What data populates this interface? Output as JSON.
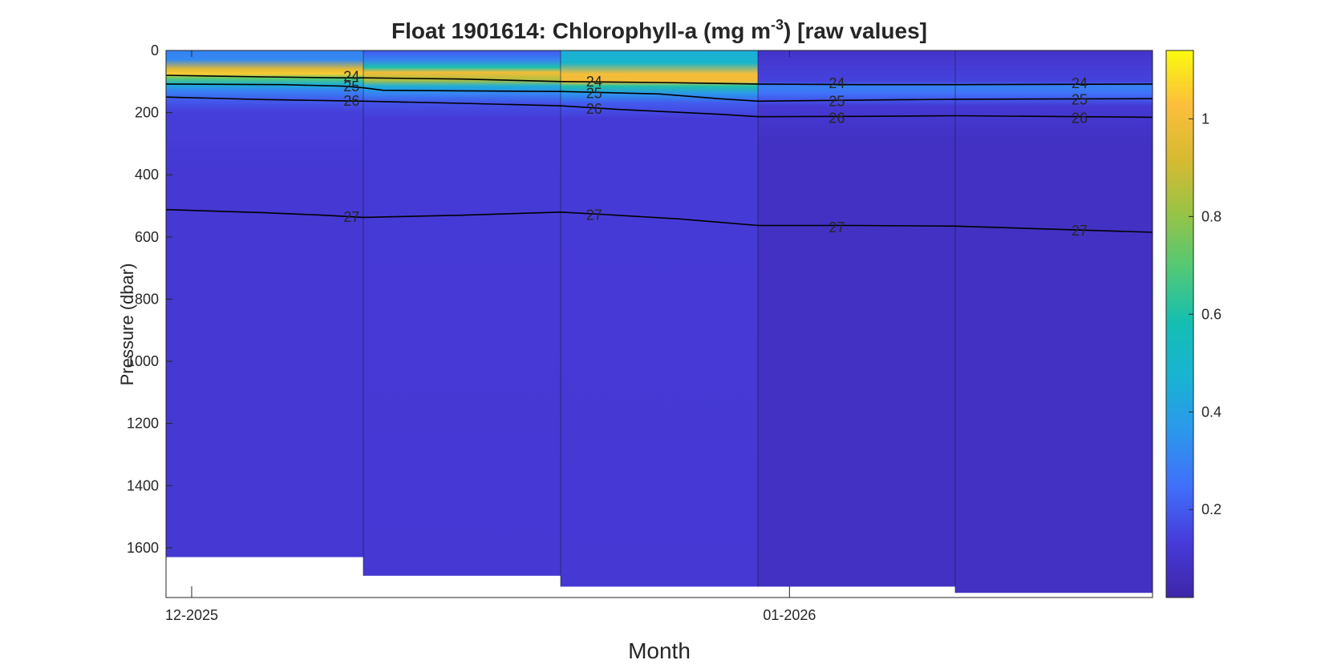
{
  "chart_data": {
    "type": "heatmap",
    "title": {
      "prefix": "Float  1901614:  Chlorophyll-a  (mg  m",
      "superscript": "-3",
      "suffix": ")  [raw  values]"
    },
    "xlabel": "Month",
    "ylabel": "Pressure (dbar)",
    "ylim": [
      0,
      1760
    ],
    "y_reversed": true,
    "y_ticks": [
      0,
      200,
      400,
      600,
      800,
      1000,
      1200,
      1400,
      1600
    ],
    "x_ticks": [
      {
        "label": "12-2025",
        "profile_pos": 0.13
      },
      {
        "label": "01-2026",
        "profile_pos": 3.16
      }
    ],
    "colorbar": {
      "range": [
        0.02,
        1.14
      ],
      "ticks": [
        0.2,
        0.4,
        0.6,
        0.8,
        1
      ],
      "colormap": "parula"
    },
    "grid": false,
    "profiles": [
      {
        "max_pressure": 1630,
        "chl_layers": [
          {
            "p": 0,
            "v": 0.3
          },
          {
            "p": 30,
            "v": 0.32
          },
          {
            "p": 60,
            "v": 0.95
          },
          {
            "p": 75,
            "v": 1.05
          },
          {
            "p": 90,
            "v": 0.7
          },
          {
            "p": 110,
            "v": 0.45
          },
          {
            "p": 130,
            "v": 0.3
          },
          {
            "p": 160,
            "v": 0.2
          },
          {
            "p": 200,
            "v": 0.14
          },
          {
            "p": 400,
            "v": 0.12
          },
          {
            "p": 1630,
            "v": 0.12
          }
        ]
      },
      {
        "max_pressure": 1690,
        "chl_layers": [
          {
            "p": 0,
            "v": 0.2
          },
          {
            "p": 30,
            "v": 0.3
          },
          {
            "p": 55,
            "v": 0.6
          },
          {
            "p": 70,
            "v": 1.0
          },
          {
            "p": 95,
            "v": 0.85
          },
          {
            "p": 115,
            "v": 0.45
          },
          {
            "p": 140,
            "v": 0.3
          },
          {
            "p": 170,
            "v": 0.18
          },
          {
            "p": 220,
            "v": 0.13
          },
          {
            "p": 1690,
            "v": 0.12
          }
        ]
      },
      {
        "max_pressure": 1725,
        "chl_layers": [
          {
            "p": 0,
            "v": 0.45
          },
          {
            "p": 40,
            "v": 0.5
          },
          {
            "p": 75,
            "v": 1.0
          },
          {
            "p": 100,
            "v": 1.0
          },
          {
            "p": 115,
            "v": 0.6
          },
          {
            "p": 140,
            "v": 0.35
          },
          {
            "p": 170,
            "v": 0.2
          },
          {
            "p": 220,
            "v": 0.13
          },
          {
            "p": 1725,
            "v": 0.12
          }
        ]
      },
      {
        "max_pressure": 1725,
        "chl_layers": [
          {
            "p": 0,
            "v": 0.1
          },
          {
            "p": 100,
            "v": 0.15
          },
          {
            "p": 115,
            "v": 0.3
          },
          {
            "p": 140,
            "v": 0.25
          },
          {
            "p": 180,
            "v": 0.12
          },
          {
            "p": 300,
            "v": 0.08
          },
          {
            "p": 1725,
            "v": 0.08
          }
        ]
      },
      {
        "max_pressure": 1745,
        "chl_layers": [
          {
            "p": 0,
            "v": 0.1
          },
          {
            "p": 100,
            "v": 0.15
          },
          {
            "p": 115,
            "v": 0.3
          },
          {
            "p": 140,
            "v": 0.25
          },
          {
            "p": 180,
            "v": 0.12
          },
          {
            "p": 300,
            "v": 0.08
          },
          {
            "p": 1745,
            "v": 0.08
          }
        ]
      }
    ],
    "contours": [
      {
        "level": "24",
        "points": [
          [
            0,
            80
          ],
          [
            0.5,
            85
          ],
          [
            0.9,
            88
          ],
          [
            1.0,
            88
          ],
          [
            1.5,
            92
          ],
          [
            2.0,
            100
          ],
          [
            2.5,
            103
          ],
          [
            3.0,
            108
          ],
          [
            3.5,
            110
          ],
          [
            4.0,
            110
          ],
          [
            5.0,
            108
          ]
        ],
        "labels": [
          [
            0.94,
            84
          ],
          [
            2.17,
            100
          ],
          [
            3.4,
            106
          ],
          [
            4.63,
            106
          ]
        ]
      },
      {
        "level": "25",
        "points": [
          [
            0,
            108
          ],
          [
            0.6,
            110
          ],
          [
            0.9,
            115
          ],
          [
            1.0,
            120
          ],
          [
            1.1,
            128
          ],
          [
            1.5,
            130
          ],
          [
            2.0,
            132
          ],
          [
            2.5,
            140
          ],
          [
            2.8,
            155
          ],
          [
            3.0,
            163
          ],
          [
            3.5,
            160
          ],
          [
            4.0,
            157
          ],
          [
            5.0,
            155
          ]
        ],
        "labels": [
          [
            0.94,
            116
          ],
          [
            2.17,
            138
          ],
          [
            3.4,
            163
          ],
          [
            4.63,
            158
          ]
        ]
      },
      {
        "level": "26",
        "points": [
          [
            0,
            150
          ],
          [
            0.5,
            158
          ],
          [
            0.9,
            162
          ],
          [
            1.0,
            163
          ],
          [
            1.5,
            170
          ],
          [
            2.0,
            178
          ],
          [
            2.3,
            190
          ],
          [
            2.8,
            205
          ],
          [
            3.0,
            213
          ],
          [
            3.5,
            212
          ],
          [
            4.0,
            210
          ],
          [
            5.0,
            215
          ]
        ],
        "labels": [
          [
            0.94,
            162
          ],
          [
            2.17,
            188
          ],
          [
            3.4,
            218
          ],
          [
            4.63,
            218
          ]
        ]
      },
      {
        "level": "27",
        "points": [
          [
            0,
            512
          ],
          [
            0.5,
            522
          ],
          [
            0.8,
            530
          ],
          [
            1.0,
            537
          ],
          [
            1.5,
            530
          ],
          [
            2.0,
            520
          ],
          [
            2.2,
            527
          ],
          [
            2.6,
            542
          ],
          [
            3.0,
            563
          ],
          [
            3.5,
            563
          ],
          [
            4.0,
            565
          ],
          [
            5.0,
            585
          ]
        ],
        "labels": [
          [
            0.94,
            536
          ],
          [
            2.17,
            530
          ],
          [
            3.4,
            570
          ],
          [
            4.63,
            580
          ]
        ]
      }
    ]
  }
}
